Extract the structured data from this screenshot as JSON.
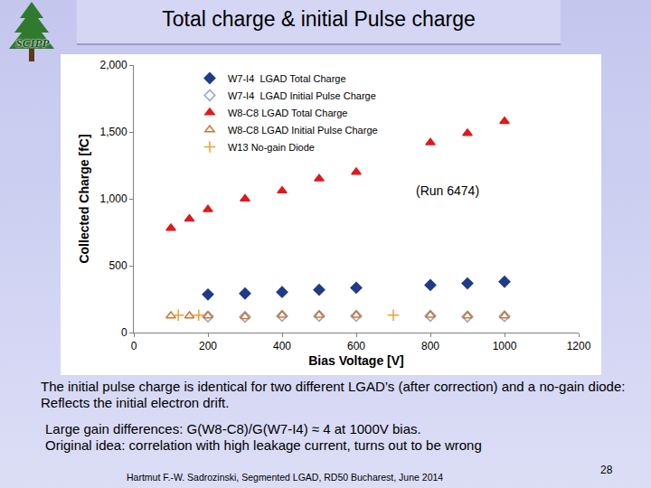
{
  "slide": {
    "title": "Total charge & initial Pulse charge",
    "logo": "SCIPP",
    "paragraphs": [
      [
        "The initial pulse charge is identical for two different LGAD’s (after correction) and a no-gain diode: Reflects the initial electron drift."
      ],
      [
        "Large gain differences: G(W8-C8)/G(W7-I4) ≈ 4 at 1000V bias.",
        "Original idea: correlation with high leakage current, turns out to be wrong"
      ]
    ],
    "footer": "Hartmut F.-W. Sadrozinski, Segmented LGAD, RD50 Bucharest, June 2014",
    "page": "28"
  },
  "chart_data": {
    "type": "scatter",
    "x_label": "Bias Voltage [V]",
    "y_label": "Collected Charge [fC]",
    "annotation": "(Run 6474)",
    "xlim": [
      0,
      1200
    ],
    "xticks": [
      0,
      200,
      400,
      600,
      800,
      1000,
      1200
    ],
    "ylim": [
      0,
      2000
    ],
    "yticks": [
      0,
      500,
      {
        "value": 1000,
        "label": "1,000"
      },
      {
        "value": 1500,
        "label": "1,500"
      },
      {
        "value": 2000,
        "label": "2,000"
      }
    ],
    "grid": false,
    "legend": "top-left",
    "series": [
      {
        "name": "W7-I4  LGAD Total Charge",
        "color": "#1f3c88",
        "marker": "diamond",
        "x": [
          200,
          300,
          400,
          500,
          600,
          800,
          900,
          1000
        ],
        "values": [
          285,
          292,
          303,
          320,
          335,
          355,
          368,
          380
        ]
      },
      {
        "name": "W7-I4  LGAD Initial Pulse Charge",
        "color": "#9aa4c8",
        "marker": "diamond-open",
        "x": [
          200,
          300,
          400,
          500,
          600,
          800,
          900,
          1000
        ],
        "values": [
          120,
          118,
          125,
          125,
          125,
          125,
          120,
          122
        ]
      },
      {
        "name": "W8-C8 LGAD Total Charge",
        "color": "#e0191c",
        "marker": "triangle-up",
        "x": [
          100,
          150,
          200,
          300,
          400,
          500,
          600,
          800,
          900,
          1000
        ],
        "values": [
          780,
          850,
          920,
          1000,
          1060,
          1150,
          1200,
          1420,
          1490,
          1580
        ]
      },
      {
        "name": "W8-C8 LGAD Initial Pulse Charge",
        "color": "#c87838",
        "marker": "triangle-up-open",
        "x": [
          100,
          150,
          200,
          300,
          400,
          500,
          600,
          800,
          900,
          1000
        ],
        "values": [
          125,
          125,
          125,
          120,
          130,
          130,
          130,
          130,
          125,
          125
        ]
      },
      {
        "name": "W13 No-gain Diode",
        "color": "#f0a030",
        "marker": "cross-thin",
        "x": [
          120,
          175,
          700
        ],
        "values": [
          130,
          130,
          130
        ]
      }
    ]
  }
}
